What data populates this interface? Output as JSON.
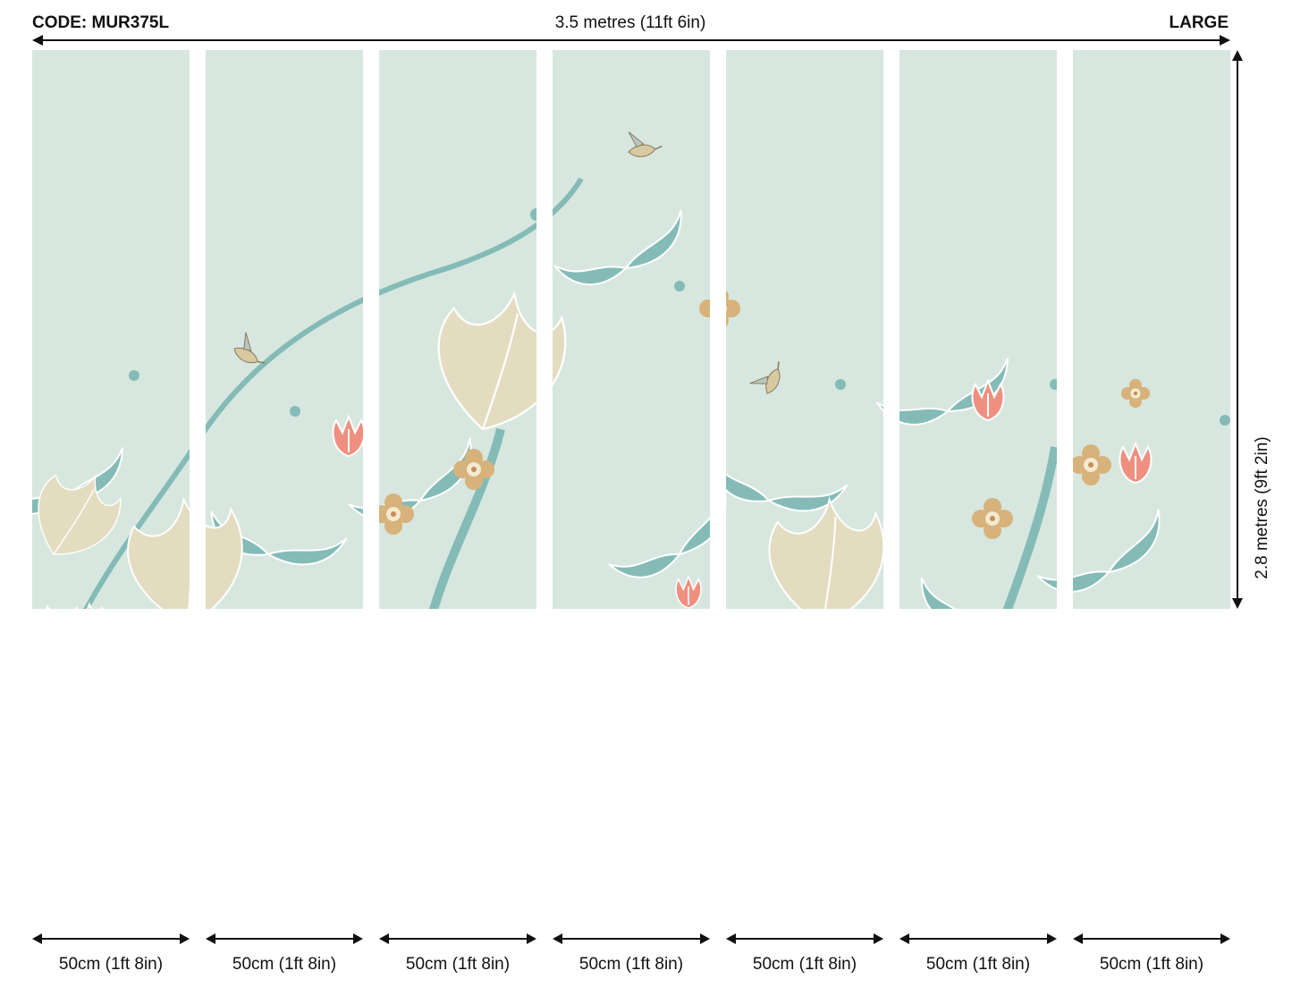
{
  "header": {
    "code": "CODE: MUR375L",
    "width": "3.5 metres (11ft 6in)",
    "size": "LARGE"
  },
  "height_label": "2.8 metres (9ft 2in)",
  "panels": [
    {
      "label": "50cm (1ft 8in)"
    },
    {
      "label": "50cm (1ft 8in)"
    },
    {
      "label": "50cm (1ft 8in)"
    },
    {
      "label": "50cm (1ft 8in)"
    },
    {
      "label": "50cm (1ft 8in)"
    },
    {
      "label": "50cm (1ft 8in)"
    },
    {
      "label": "50cm (1ft 8in)"
    }
  ],
  "colors": {
    "background_mint": "#d7e7df",
    "teal_leaf": "#84bbb6",
    "coral_flower": "#ef8f80",
    "cream_leaf": "#e3dcc0",
    "mustard_flower": "#d7b27a",
    "sage_leaf": "#a7c39a"
  }
}
